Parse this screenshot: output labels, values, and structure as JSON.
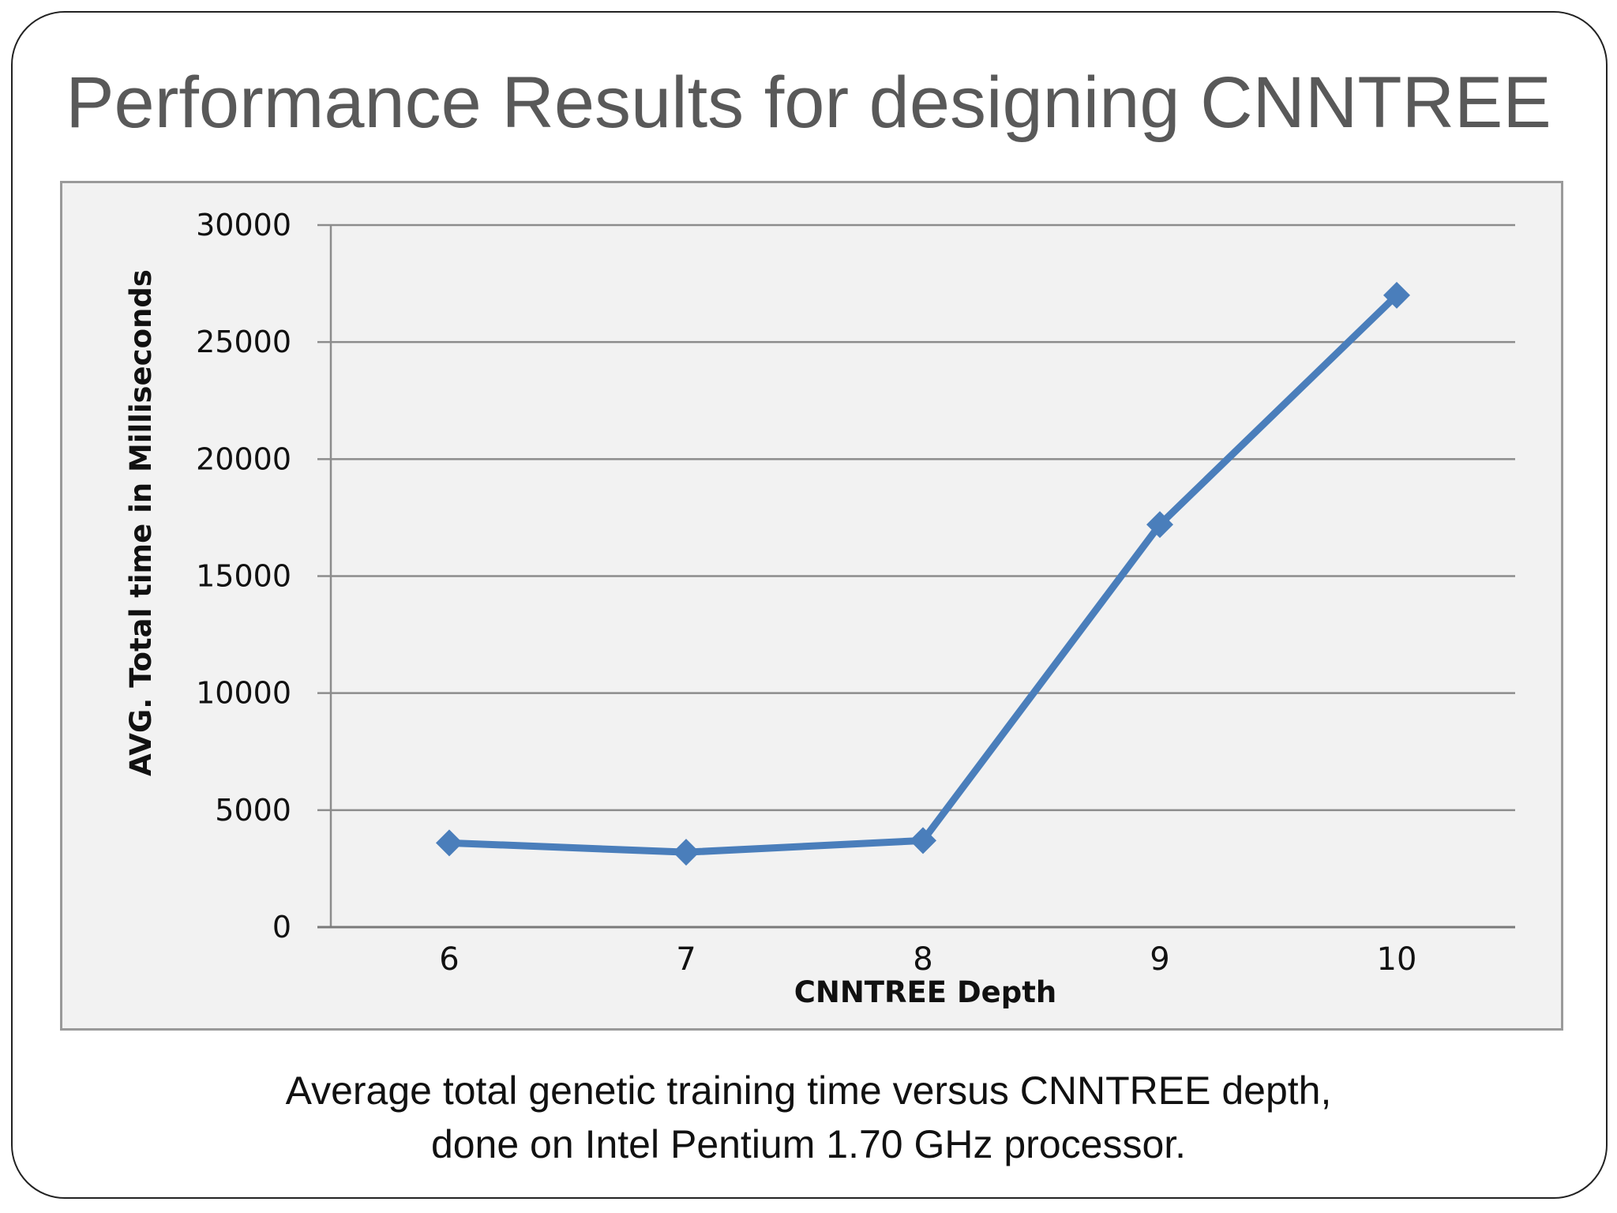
{
  "slide": {
    "title": "Performance Results for designing CNNTREE",
    "caption_line_1": "Average total genetic training time versus CNNTREE depth,",
    "caption_line_2": "done on Intel Pentium 1.70 GHz processor."
  },
  "colors": {
    "series": "#4a7ebb",
    "title": "#595959",
    "panel_background": "#f2f2f2",
    "gridline": "#8c8c8c"
  },
  "chart_data": {
    "type": "line",
    "title": "",
    "xlabel": "CNNTREE Depth",
    "ylabel": "AVG. Total time in Milliseconds",
    "categories": [
      "6",
      "7",
      "8",
      "9",
      "10"
    ],
    "series": [
      {
        "values": [
          3600,
          3200,
          3700,
          17200,
          27000
        ],
        "marker": "diamond"
      }
    ],
    "ylim": [
      0,
      30000
    ],
    "yticks": [
      "0",
      "5000",
      "10000",
      "15000",
      "20000",
      "25000",
      "30000"
    ],
    "grid": true,
    "legend": "none"
  }
}
